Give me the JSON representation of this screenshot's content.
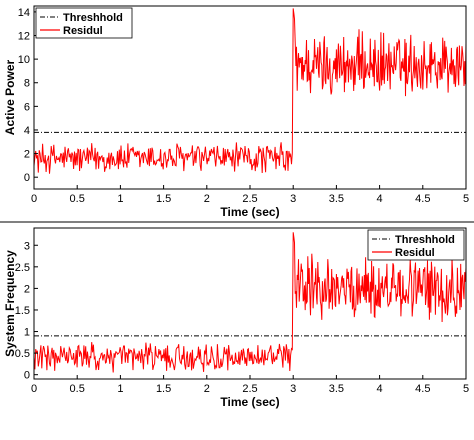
{
  "chart_data": [
    {
      "type": "line",
      "xlabel": "Time (sec)",
      "ylabel": "Active Power",
      "xlim": [
        0,
        5
      ],
      "ylim": [
        -1,
        14.5
      ],
      "xticks": [
        "0",
        "0.5",
        "1",
        "1.5",
        "2",
        "2.5",
        "3",
        "3.5",
        "4",
        "4.5",
        "5"
      ],
      "yticks": [
        "0",
        "2",
        "4",
        "6",
        "8",
        "10",
        "12",
        "14"
      ],
      "grid": false,
      "legend_position": "top-left",
      "series": [
        {
          "name": "Threshhold",
          "style": "dash-dot",
          "color": "#000000",
          "x": [
            0,
            5
          ],
          "y": [
            3.8,
            3.8
          ]
        },
        {
          "name": "Residul",
          "style": "solid",
          "color": "#ff0000",
          "segments": [
            {
              "x_start": 0,
              "x_end": 2.99,
              "mean": 1.6,
              "spread": 2.2,
              "min": 0,
              "max": 3.5
            },
            {
              "x_start": 3.0,
              "x_end": 5.0,
              "mean": 9.5,
              "spread": 4.5,
              "min": 6.5,
              "max": 14.3,
              "peak_at_jump": 14.3
            }
          ]
        }
      ]
    },
    {
      "type": "line",
      "xlabel": "Time (sec)",
      "ylabel": "System Frequency",
      "xlim": [
        0,
        5
      ],
      "ylim": [
        -0.1,
        3.4
      ],
      "xticks": [
        "0",
        "0.5",
        "1",
        "1.5",
        "2",
        "2.5",
        "3",
        "3.5",
        "4",
        "4.5",
        "5"
      ],
      "yticks": [
        "0",
        "0.5",
        "1",
        "1.5",
        "2",
        "2.5",
        "3"
      ],
      "grid": false,
      "legend_position": "top-right",
      "series": [
        {
          "name": "Threshhold",
          "style": "dash-dot",
          "color": "#000000",
          "x": [
            0,
            5
          ],
          "y": [
            0.9,
            0.9
          ]
        },
        {
          "name": "Residul",
          "style": "solid",
          "color": "#ff0000",
          "segments": [
            {
              "x_start": 0,
              "x_end": 2.99,
              "mean": 0.4,
              "spread": 0.55,
              "min": 0.05,
              "max": 0.8
            },
            {
              "x_start": 3.0,
              "x_end": 5.0,
              "mean": 2.0,
              "spread": 1.2,
              "min": 1.0,
              "max": 3.3,
              "peak_at_jump": 3.3
            }
          ]
        }
      ]
    }
  ]
}
